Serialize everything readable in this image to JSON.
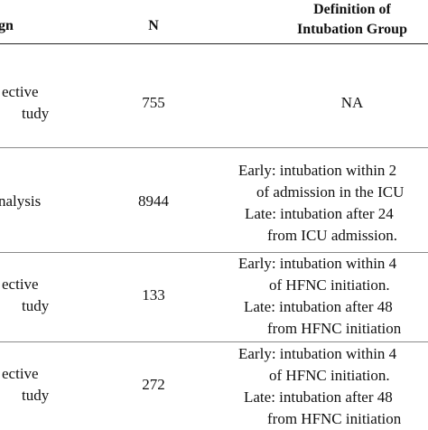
{
  "table": {
    "headers": {
      "design": "gn",
      "n": "N",
      "definition_line1": "Definition of",
      "definition_line2": "Intubation Group"
    },
    "rows": [
      {
        "design_line1": "ective",
        "design_line2": "tudy",
        "n": "755",
        "definition": [
          "NA"
        ]
      },
      {
        "design_line1": "nalysis",
        "design_line2": "",
        "n": "8944",
        "definition": [
          "Early: intubation within 2",
          "of admission in the ICU",
          "Late: intubation after 24",
          "from ICU admission."
        ]
      },
      {
        "design_line1": "ective",
        "design_line2": "tudy",
        "n": "133",
        "definition": [
          "Early: intubation within 4",
          "of HFNC initiation.",
          "Late: intubation after 48",
          "from HFNC initiation"
        ]
      },
      {
        "design_line1": "ective",
        "design_line2": "tudy",
        "n": "272",
        "definition": [
          "Early: intubation within 4",
          "of HFNC initiation.",
          "Late: intubation after 48",
          "from HFNC initiation"
        ]
      }
    ]
  }
}
